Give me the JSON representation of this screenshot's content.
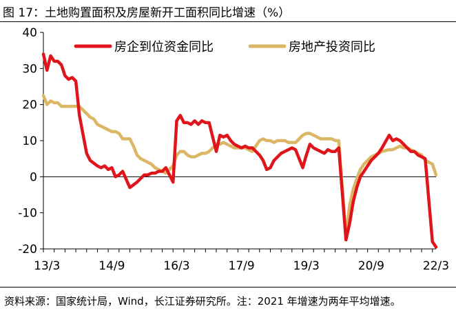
{
  "figure": {
    "title": "图 17：土地购置面积及房屋新开工面积同比增速（%）",
    "source_note": "资料来源：国家统计局，Wind，长江证券研究所。注：2021 年增速为两年平均增速。"
  },
  "chart_data": {
    "type": "line",
    "title": "",
    "xlabel": "",
    "ylabel": "",
    "ylim": [
      -20,
      40
    ],
    "yticks": [
      -20,
      -10,
      0,
      10,
      20,
      30,
      40
    ],
    "xtick_labels": [
      "13/3",
      "14/9",
      "16/3",
      "17/9",
      "19/3",
      "20/9",
      "22/3"
    ],
    "x_range": [
      "2013-02",
      "2022-03"
    ],
    "grid": false,
    "legend_position": "top",
    "series": [
      {
        "name": "房企到位资金同比",
        "color": "#e0151c",
        "points": [
          [
            "2013-02",
            34.0
          ],
          [
            "2013-03",
            29.5
          ],
          [
            "2013-04",
            33.5
          ],
          [
            "2013-05",
            32.0
          ],
          [
            "2013-06",
            32.0
          ],
          [
            "2013-07",
            31.0
          ],
          [
            "2013-08",
            28.0
          ],
          [
            "2013-09",
            27.0
          ],
          [
            "2013-10",
            27.5
          ],
          [
            "2013-11",
            26.5
          ],
          [
            "2013-12",
            17.0
          ],
          [
            "2014-02",
            6.5
          ],
          [
            "2014-03",
            4.5
          ],
          [
            "2014-05",
            3.0
          ],
          [
            "2014-06",
            2.5
          ],
          [
            "2014-07",
            3.0
          ],
          [
            "2014-08",
            2.0
          ],
          [
            "2014-09",
            2.5
          ],
          [
            "2014-10",
            0.0
          ],
          [
            "2014-11",
            0.5
          ],
          [
            "2014-12",
            1.5
          ],
          [
            "2015-02",
            -3.0
          ],
          [
            "2015-04",
            -1.5
          ],
          [
            "2015-05",
            -0.5
          ],
          [
            "2015-06",
            0.5
          ],
          [
            "2015-07",
            0.5
          ],
          [
            "2015-08",
            1.0
          ],
          [
            "2015-09",
            1.0
          ],
          [
            "2015-10",
            1.5
          ],
          [
            "2015-11",
            1.5
          ],
          [
            "2015-12",
            2.5
          ],
          [
            "2016-02",
            -1.5
          ],
          [
            "2016-03",
            15.5
          ],
          [
            "2016-04",
            17.0
          ],
          [
            "2016-05",
            15.0
          ],
          [
            "2016-06",
            15.0
          ],
          [
            "2016-07",
            14.5
          ],
          [
            "2016-08",
            15.5
          ],
          [
            "2016-09",
            14.5
          ],
          [
            "2016-10",
            15.5
          ],
          [
            "2016-11",
            15.0
          ],
          [
            "2016-12",
            15.0
          ],
          [
            "2017-02",
            7.0
          ],
          [
            "2017-03",
            11.5
          ],
          [
            "2017-04",
            11.0
          ],
          [
            "2017-05",
            11.5
          ],
          [
            "2017-06",
            10.0
          ],
          [
            "2017-07",
            9.0
          ],
          [
            "2017-08",
            8.5
          ],
          [
            "2017-09",
            8.0
          ],
          [
            "2017-10",
            8.5
          ],
          [
            "2017-11",
            8.0
          ],
          [
            "2017-12",
            8.0
          ],
          [
            "2018-02",
            6.0
          ],
          [
            "2018-03",
            4.5
          ],
          [
            "2018-04",
            2.0
          ],
          [
            "2018-05",
            2.5
          ],
          [
            "2018-06",
            4.5
          ],
          [
            "2018-07",
            5.5
          ],
          [
            "2018-08",
            6.5
          ],
          [
            "2018-09",
            7.0
          ],
          [
            "2018-10",
            7.5
          ],
          [
            "2018-11",
            8.0
          ],
          [
            "2018-12",
            7.5
          ],
          [
            "2019-02",
            2.5
          ],
          [
            "2019-03",
            6.0
          ],
          [
            "2019-04",
            9.0
          ],
          [
            "2019-05",
            8.0
          ],
          [
            "2019-06",
            7.5
          ],
          [
            "2019-07",
            7.0
          ],
          [
            "2019-08",
            6.5
          ],
          [
            "2019-09",
            7.5
          ],
          [
            "2019-10",
            7.0
          ],
          [
            "2019-11",
            7.0
          ],
          [
            "2019-12",
            8.0
          ],
          [
            "2020-02",
            -17.5
          ],
          [
            "2020-03",
            -13.0
          ],
          [
            "2020-04",
            -7.0
          ],
          [
            "2020-05",
            -3.0
          ],
          [
            "2020-06",
            0.0
          ],
          [
            "2020-07",
            1.5
          ],
          [
            "2020-08",
            3.0
          ],
          [
            "2020-09",
            4.5
          ],
          [
            "2020-10",
            5.5
          ],
          [
            "2020-11",
            6.5
          ],
          [
            "2020-12",
            8.0
          ],
          [
            "2021-02",
            11.5
          ],
          [
            "2021-03",
            10.0
          ],
          [
            "2021-04",
            10.5
          ],
          [
            "2021-05",
            10.0
          ],
          [
            "2021-06",
            9.0
          ],
          [
            "2021-07",
            8.0
          ],
          [
            "2021-08",
            7.0
          ],
          [
            "2021-09",
            7.0
          ],
          [
            "2021-10",
            6.0
          ],
          [
            "2021-11",
            5.5
          ],
          [
            "2021-12",
            5.0
          ],
          [
            "2022-02",
            -18.0
          ],
          [
            "2022-03",
            -19.5
          ]
        ]
      },
      {
        "name": "房地产投资同比",
        "color": "#dbb664",
        "points": [
          [
            "2013-02",
            22.5
          ],
          [
            "2013-03",
            20.0
          ],
          [
            "2013-04",
            21.0
          ],
          [
            "2013-05",
            20.5
          ],
          [
            "2013-06",
            20.5
          ],
          [
            "2013-07",
            19.5
          ],
          [
            "2013-08",
            19.5
          ],
          [
            "2013-09",
            19.5
          ],
          [
            "2013-10",
            19.5
          ],
          [
            "2013-11",
            19.5
          ],
          [
            "2013-12",
            19.5
          ],
          [
            "2014-02",
            17.5
          ],
          [
            "2014-03",
            16.5
          ],
          [
            "2014-04",
            16.0
          ],
          [
            "2014-05",
            14.5
          ],
          [
            "2014-06",
            14.0
          ],
          [
            "2014-07",
            13.5
          ],
          [
            "2014-08",
            13.0
          ],
          [
            "2014-09",
            12.5
          ],
          [
            "2014-10",
            12.5
          ],
          [
            "2014-11",
            12.0
          ],
          [
            "2014-12",
            10.5
          ],
          [
            "2015-02",
            10.5
          ],
          [
            "2015-03",
            8.5
          ],
          [
            "2015-04",
            6.0
          ],
          [
            "2015-05",
            5.0
          ],
          [
            "2015-06",
            4.5
          ],
          [
            "2015-07",
            4.0
          ],
          [
            "2015-08",
            3.5
          ],
          [
            "2015-09",
            2.5
          ],
          [
            "2015-10",
            2.0
          ],
          [
            "2015-11",
            1.5
          ],
          [
            "2015-12",
            1.0
          ],
          [
            "2016-02",
            3.0
          ],
          [
            "2016-03",
            6.0
          ],
          [
            "2016-04",
            7.0
          ],
          [
            "2016-05",
            7.0
          ],
          [
            "2016-06",
            6.0
          ],
          [
            "2016-07",
            5.5
          ],
          [
            "2016-08",
            5.5
          ],
          [
            "2016-09",
            6.0
          ],
          [
            "2016-10",
            6.5
          ],
          [
            "2016-11",
            6.5
          ],
          [
            "2016-12",
            7.0
          ],
          [
            "2017-02",
            9.0
          ],
          [
            "2017-03",
            9.0
          ],
          [
            "2017-04",
            9.5
          ],
          [
            "2017-05",
            9.0
          ],
          [
            "2017-06",
            8.5
          ],
          [
            "2017-07",
            8.0
          ],
          [
            "2017-08",
            8.0
          ],
          [
            "2017-09",
            8.0
          ],
          [
            "2017-10",
            8.0
          ],
          [
            "2017-11",
            7.5
          ],
          [
            "2017-12",
            7.0
          ],
          [
            "2018-02",
            10.0
          ],
          [
            "2018-03",
            10.5
          ],
          [
            "2018-04",
            10.0
          ],
          [
            "2018-05",
            10.0
          ],
          [
            "2018-06",
            9.5
          ],
          [
            "2018-07",
            10.0
          ],
          [
            "2018-08",
            10.0
          ],
          [
            "2018-09",
            10.0
          ],
          [
            "2018-10",
            9.5
          ],
          [
            "2018-11",
            9.5
          ],
          [
            "2018-12",
            9.5
          ],
          [
            "2019-02",
            11.5
          ],
          [
            "2019-03",
            12.0
          ],
          [
            "2019-04",
            12.0
          ],
          [
            "2019-05",
            11.5
          ],
          [
            "2019-06",
            11.0
          ],
          [
            "2019-07",
            10.5
          ],
          [
            "2019-08",
            10.5
          ],
          [
            "2019-09",
            10.5
          ],
          [
            "2019-10",
            10.5
          ],
          [
            "2019-11",
            10.0
          ],
          [
            "2019-12",
            10.0
          ],
          [
            "2020-02",
            -16.5
          ],
          [
            "2020-03",
            -8.0
          ],
          [
            "2020-04",
            -3.5
          ],
          [
            "2020-05",
            -0.5
          ],
          [
            "2020-06",
            2.0
          ],
          [
            "2020-07",
            3.5
          ],
          [
            "2020-08",
            4.5
          ],
          [
            "2020-09",
            5.5
          ],
          [
            "2020-10",
            6.0
          ],
          [
            "2020-11",
            6.5
          ],
          [
            "2020-12",
            7.0
          ],
          [
            "2021-02",
            7.5
          ],
          [
            "2021-03",
            7.5
          ],
          [
            "2021-04",
            8.0
          ],
          [
            "2021-05",
            8.5
          ],
          [
            "2021-06",
            8.0
          ],
          [
            "2021-07",
            8.0
          ],
          [
            "2021-08",
            7.5
          ],
          [
            "2021-09",
            7.0
          ],
          [
            "2021-10",
            6.5
          ],
          [
            "2021-11",
            6.0
          ],
          [
            "2021-12",
            4.5
          ],
          [
            "2022-02",
            3.5
          ],
          [
            "2022-03",
            0.5
          ]
        ]
      }
    ]
  }
}
